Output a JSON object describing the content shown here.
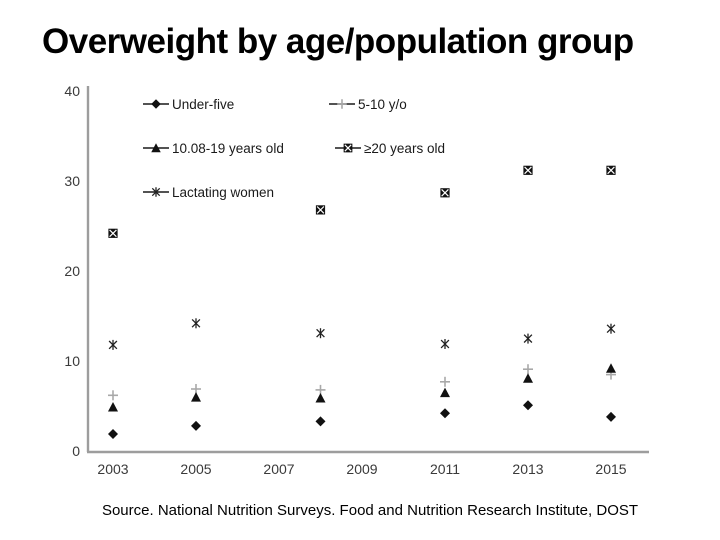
{
  "title": "Overweight by age/population group",
  "source": "Source.  National Nutrition Surveys.  Food and Nutrition Research Institute, DOST",
  "chart_data": {
    "type": "scatter",
    "title": "Overweight by age/population group",
    "x": [
      2003,
      2005,
      2008,
      2011,
      2013,
      2015
    ],
    "series": [
      {
        "name": "Under-five",
        "marker": "diamond",
        "color": "#111111",
        "values": [
          2.0,
          2.9,
          3.4,
          4.3,
          5.2,
          3.9
        ]
      },
      {
        "name": "5-10 y/o",
        "marker": "plus",
        "color": "#a8a8a8",
        "values": [
          6.3,
          7.0,
          6.9,
          7.8,
          9.2,
          8.6
        ]
      },
      {
        "name": "10.08-19 years old",
        "marker": "triangle",
        "color": "#111111",
        "values": [
          5.0,
          6.1,
          6.0,
          6.6,
          8.2,
          9.3
        ]
      },
      {
        "name": "≥20 years old",
        "marker": "boxed-x",
        "color": "#111111",
        "values": [
          24.3,
          null,
          26.9,
          28.8,
          31.3,
          31.3
        ]
      },
      {
        "name": "Lactating women",
        "marker": "asterisk",
        "color": "#222222",
        "values": [
          11.9,
          14.3,
          13.2,
          12.0,
          12.6,
          13.7
        ]
      }
    ],
    "xticks": [
      2003,
      2005,
      2007,
      2009,
      2011,
      2013,
      2015
    ],
    "yticks": [
      40,
      30,
      20,
      10,
      0
    ],
    "ylim": [
      0,
      40
    ],
    "xlim": [
      2003,
      2015
    ],
    "grid": false,
    "lines": false,
    "legend_position": "inside-top-left",
    "axis_color": "#9d9d9d"
  }
}
